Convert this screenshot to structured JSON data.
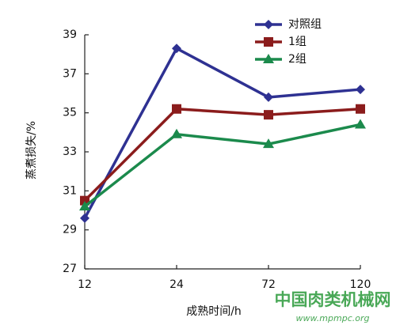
{
  "chart_data": {
    "type": "line",
    "y_label": "蒸煮损失/%",
    "x_label": "成熟时间/h",
    "categories": [
      "12",
      "24",
      "72",
      "120"
    ],
    "series": [
      {
        "name": "对照组",
        "color": "#2e3192",
        "marker": "diamond",
        "values": [
          29.6,
          38.3,
          35.8,
          36.2
        ]
      },
      {
        "name": "1组",
        "color": "#8b1c1c",
        "marker": "square",
        "values": [
          30.5,
          35.2,
          34.9,
          35.2
        ]
      },
      {
        "name": "2组",
        "color": "#1b8a4c",
        "marker": "triangle",
        "values": [
          30.2,
          33.9,
          33.4,
          34.4
        ]
      }
    ],
    "ylim": [
      27,
      39
    ],
    "yticks": [
      27,
      29,
      31,
      33,
      35,
      37,
      39
    ],
    "legend": "top-right",
    "grid": false
  },
  "watermark": {
    "title": "中国肉类机械网",
    "url": "www.mpmpc.org"
  }
}
